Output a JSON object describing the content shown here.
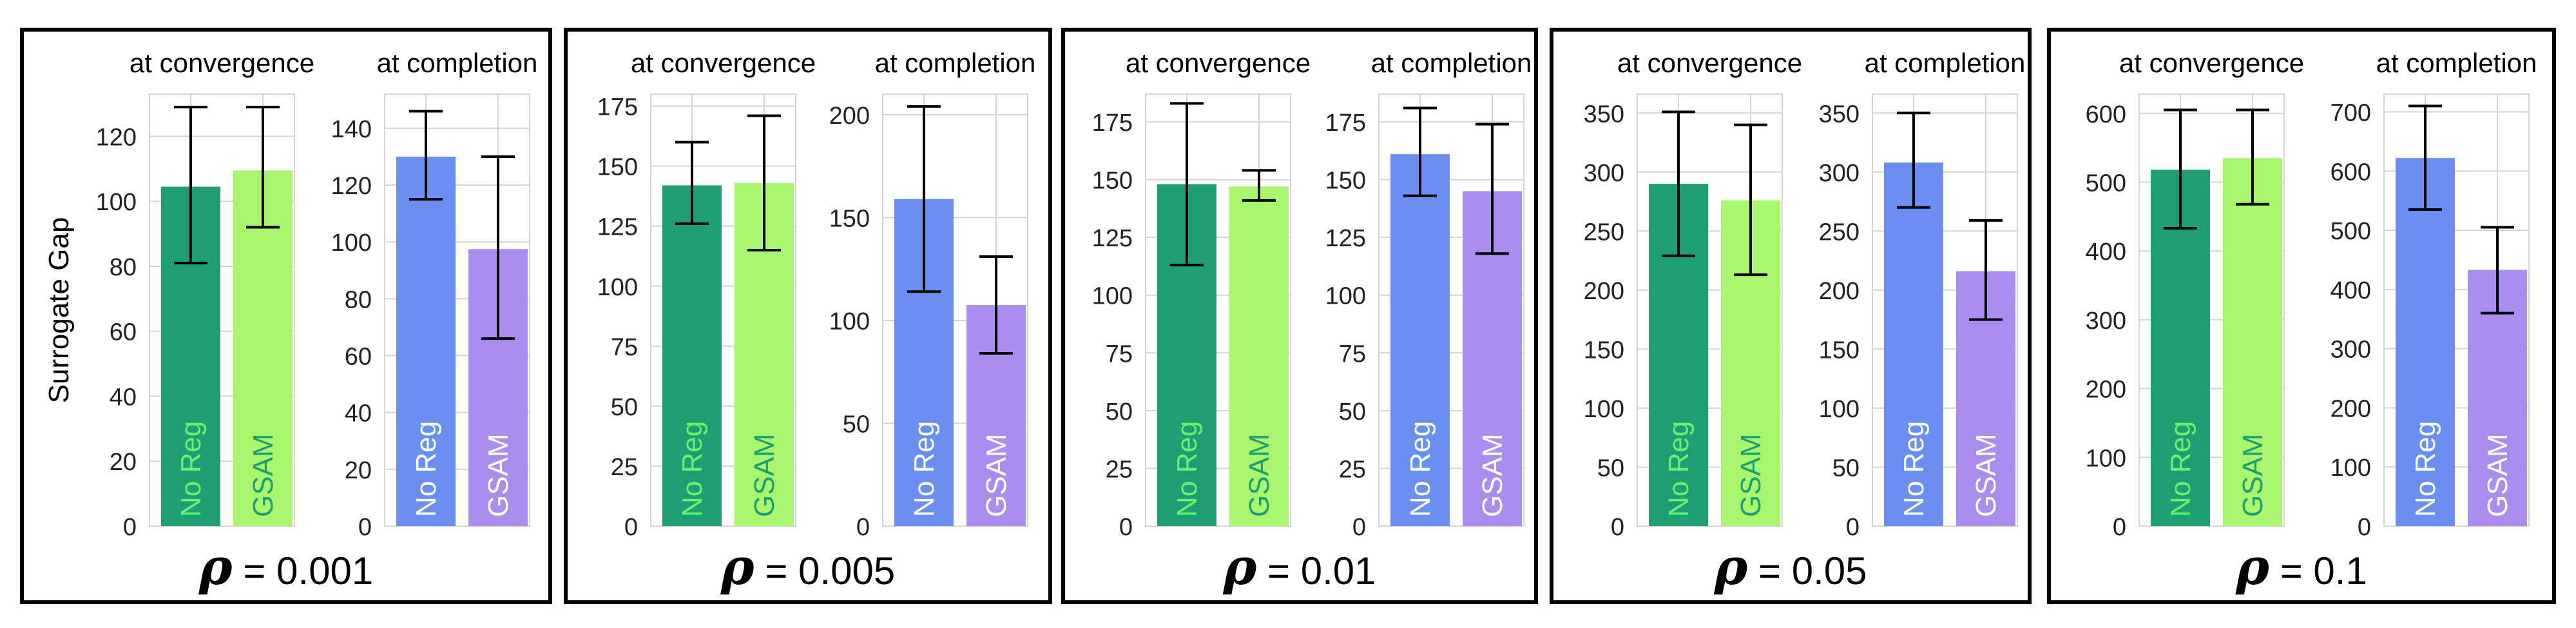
{
  "y_axis_label": "Surrogate Gap",
  "colors": {
    "no_reg_convergence": "#1e9e72",
    "gsam_convergence": "#aaf56e",
    "no_reg_completion": "#6b8ff0",
    "gsam_completion": "#a98ef0",
    "label_on_dark_green": "#6cf06c",
    "label_on_light_green": "#1e9e72",
    "label_on_blue": "#ffffff",
    "label_on_purple": "#ffffff",
    "grid": "#d4d4d4",
    "error_bar": "#000000",
    "frame": "#000000"
  },
  "chart_data": [
    {
      "type": "bar",
      "rho_symbol": "ρ",
      "rho_text": " = 0.001",
      "subplots": [
        {
          "title": "at convergence",
          "categories": [
            "No Reg",
            "GSAM"
          ],
          "values": [
            104.5,
            109.5
          ],
          "error_low": [
            81,
            92
          ],
          "error_high": [
            129,
            129
          ],
          "ylim": [
            0,
            133
          ],
          "yticks": [
            0,
            20,
            40,
            60,
            80,
            100,
            120
          ],
          "tick_labels": [
            "0",
            "20",
            "40",
            "60",
            "80",
            "100",
            "120"
          ]
        },
        {
          "title": "at completion",
          "categories": [
            "No Reg",
            "GSAM"
          ],
          "values": [
            130,
            97.5
          ],
          "error_low": [
            115,
            66
          ],
          "error_high": [
            146,
            130
          ],
          "ylim": [
            0,
            152
          ],
          "yticks": [
            0,
            20,
            40,
            60,
            80,
            100,
            120,
            140
          ],
          "tick_labels": [
            "0",
            "20",
            "40",
            "60",
            "80",
            "100",
            "120",
            "140"
          ]
        }
      ]
    },
    {
      "type": "bar",
      "rho_symbol": "ρ",
      "rho_text": " = 0.005",
      "subplots": [
        {
          "title": "at convergence",
          "categories": [
            "No Reg",
            "GSAM"
          ],
          "values": [
            142,
            143
          ],
          "error_low": [
            126,
            115
          ],
          "error_high": [
            160,
            171
          ],
          "ylim": [
            0,
            180
          ],
          "yticks": [
            0,
            25,
            50,
            75,
            100,
            125,
            150,
            175
          ],
          "tick_labels": [
            "0",
            "25",
            "50",
            "75",
            "100",
            "125",
            "150",
            "175"
          ]
        },
        {
          "title": "at completion",
          "categories": [
            "No Reg",
            "GSAM"
          ],
          "values": [
            159,
            107.5
          ],
          "error_low": [
            114,
            84
          ],
          "error_high": [
            204,
            131
          ],
          "ylim": [
            0,
            210
          ],
          "yticks": [
            0,
            50,
            100,
            150,
            200
          ],
          "tick_labels": [
            "0",
            "50",
            "100",
            "150",
            "200"
          ]
        }
      ]
    },
    {
      "type": "bar",
      "rho_symbol": "ρ",
      "rho_text": " = 0.01",
      "subplots": [
        {
          "title": "at convergence",
          "categories": [
            "No Reg",
            "GSAM"
          ],
          "values": [
            148,
            147
          ],
          "error_low": [
            113,
            141
          ],
          "error_high": [
            183,
            154
          ],
          "ylim": [
            0,
            187
          ],
          "yticks": [
            0,
            25,
            50,
            75,
            100,
            125,
            150,
            175
          ],
          "tick_labels": [
            "0",
            "25",
            "50",
            "75",
            "100",
            "125",
            "150",
            "175"
          ]
        },
        {
          "title": "at completion",
          "categories": [
            "No Reg",
            "GSAM"
          ],
          "values": [
            161,
            145
          ],
          "error_low": [
            143,
            118
          ],
          "error_high": [
            181,
            174
          ],
          "ylim": [
            0,
            187
          ],
          "yticks": [
            0,
            25,
            50,
            75,
            100,
            125,
            150,
            175
          ],
          "tick_labels": [
            "0",
            "25",
            "50",
            "75",
            "100",
            "125",
            "150",
            "175"
          ]
        }
      ]
    },
    {
      "type": "bar",
      "rho_symbol": "ρ",
      "rho_text": " = 0.05",
      "subplots": [
        {
          "title": "at convergence",
          "categories": [
            "No Reg",
            "GSAM"
          ],
          "values": [
            290,
            276
          ],
          "error_low": [
            229,
            213
          ],
          "error_high": [
            351,
            340
          ],
          "ylim": [
            0,
            366
          ],
          "yticks": [
            0,
            50,
            100,
            150,
            200,
            250,
            300,
            350
          ],
          "tick_labels": [
            "0",
            "50",
            "100",
            "150",
            "200",
            "250",
            "300",
            "350"
          ]
        },
        {
          "title": "at completion",
          "categories": [
            "No Reg",
            "GSAM"
          ],
          "values": [
            308,
            216
          ],
          "error_low": [
            270,
            175
          ],
          "error_high": [
            350,
            259
          ],
          "ylim": [
            0,
            366
          ],
          "yticks": [
            0,
            50,
            100,
            150,
            200,
            250,
            300,
            350
          ],
          "tick_labels": [
            "0",
            "50",
            "100",
            "150",
            "200",
            "250",
            "300",
            "350"
          ]
        }
      ]
    },
    {
      "type": "bar",
      "rho_symbol": "ρ",
      "rho_text": " = 0.1",
      "subplots": [
        {
          "title": "at convergence",
          "categories": [
            "No Reg",
            "GSAM"
          ],
          "values": [
            518,
            535
          ],
          "error_low": [
            433,
            468
          ],
          "error_high": [
            605,
            605
          ],
          "ylim": [
            0,
            628
          ],
          "yticks": [
            0,
            100,
            200,
            300,
            400,
            500,
            600
          ],
          "tick_labels": [
            "0",
            "100",
            "200",
            "300",
            "400",
            "500",
            "600"
          ]
        },
        {
          "title": "at completion",
          "categories": [
            "No Reg",
            "GSAM"
          ],
          "values": [
            622,
            433
          ],
          "error_low": [
            535,
            360
          ],
          "error_high": [
            710,
            505
          ],
          "ylim": [
            0,
            730
          ],
          "yticks": [
            0,
            100,
            200,
            300,
            400,
            500,
            600,
            700
          ],
          "tick_labels": [
            "0",
            "100",
            "200",
            "300",
            "400",
            "500",
            "600",
            "700"
          ]
        }
      ]
    }
  ]
}
